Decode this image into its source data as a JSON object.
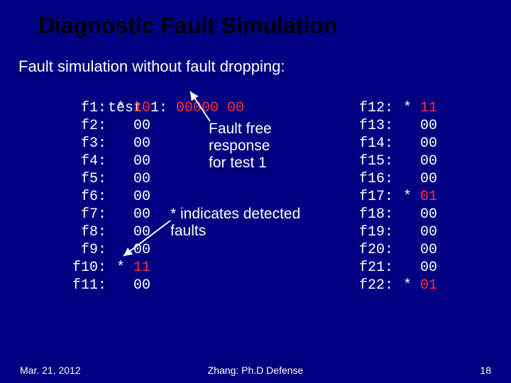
{
  "title": "Diagnostic Fault Simulation",
  "subtitle": "Fault simulation without fault dropping:",
  "test_line_label": "test 1:",
  "test_line_value_red": "00000 00",
  "faults_left": [
    {
      "label": "f1:",
      "star": "*",
      "val": "10",
      "red": true
    },
    {
      "label": "f2:",
      "star": "",
      "val": "00",
      "red": false
    },
    {
      "label": "f3:",
      "star": "",
      "val": "00",
      "red": false
    },
    {
      "label": "f4:",
      "star": "",
      "val": "00",
      "red": false
    },
    {
      "label": "f5:",
      "star": "",
      "val": "00",
      "red": false
    },
    {
      "label": "f6:",
      "star": "",
      "val": "00",
      "red": false
    },
    {
      "label": "f7:",
      "star": "",
      "val": "00",
      "red": false
    },
    {
      "label": "f8:",
      "star": "",
      "val": "00",
      "red": false
    },
    {
      "label": "f9:",
      "star": "",
      "val": "00",
      "red": false
    },
    {
      "label": "f10:",
      "star": "*",
      "val": "11",
      "red": true
    },
    {
      "label": "f11:",
      "star": "",
      "val": "00",
      "red": false
    }
  ],
  "faults_right": [
    {
      "label": "f12:",
      "star": "*",
      "val": "11",
      "red": true
    },
    {
      "label": "f13:",
      "star": "",
      "val": "00",
      "red": false
    },
    {
      "label": "f14:",
      "star": "",
      "val": "00",
      "red": false
    },
    {
      "label": "f15:",
      "star": "",
      "val": "00",
      "red": false
    },
    {
      "label": "f16:",
      "star": "",
      "val": "00",
      "red": false
    },
    {
      "label": "f17:",
      "star": "*",
      "val": "01",
      "red": true
    },
    {
      "label": "f18:",
      "star": "",
      "val": "00",
      "red": false
    },
    {
      "label": "f19:",
      "star": "",
      "val": "00",
      "red": false
    },
    {
      "label": "f20:",
      "star": "",
      "val": "00",
      "red": false
    },
    {
      "label": "f21:",
      "star": "",
      "val": "00",
      "red": false
    },
    {
      "label": "f22:",
      "star": "*",
      "val": "01",
      "red": true
    }
  ],
  "annotation1_line1": "Fault free",
  "annotation1_line2": "response",
  "annotation1_line3": "for test 1",
  "annotation2_line1": "* indicates detected",
  "annotation2_line2": "faults",
  "footer_date": "Mar.  21, 2012",
  "footer_center": "Zhang: Ph.D Defense",
  "footer_page": "18",
  "colors": {
    "bg": "#000080",
    "red": "#ff3333",
    "title": "#000000",
    "text": "#ffffff"
  }
}
